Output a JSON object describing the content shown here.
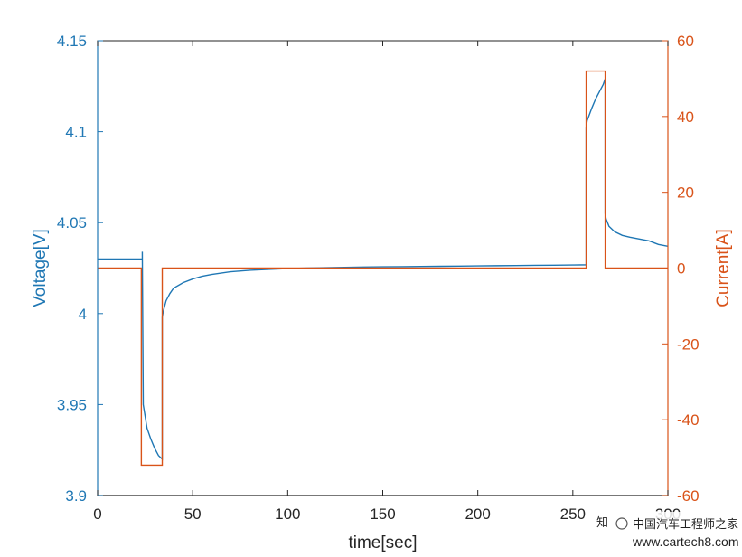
{
  "chart_data": {
    "type": "line",
    "xlabel": "time[sec]",
    "ylabel_left": "Voltage[V]",
    "ylabel_right": "Current[A]",
    "xlim": [
      0,
      300
    ],
    "ylim_left": [
      3.9,
      4.15
    ],
    "ylim_right": [
      -60,
      60
    ],
    "x_ticks": [
      0,
      50,
      100,
      150,
      200,
      250,
      300
    ],
    "y_left_ticks": [
      3.9,
      3.95,
      4,
      4.05,
      4.1,
      4.15
    ],
    "y_left_tick_labels": [
      "3.9",
      "3.95",
      "4",
      "4.05",
      "4.1",
      "4.15"
    ],
    "y_right_ticks": [
      -60,
      -40,
      -20,
      0,
      20,
      40,
      60
    ],
    "grid": false,
    "colors": {
      "voltage": "#1f77b4",
      "current": "#d95319",
      "axis": "#262626"
    },
    "series": [
      {
        "axis": "left",
        "x": [
          0,
          23.5,
          23.5,
          24,
          26,
          28,
          30,
          32,
          34,
          34,
          34.5,
          36,
          38,
          40,
          45,
          50,
          55,
          60,
          70,
          80,
          90,
          100,
          110,
          120,
          130,
          140,
          150,
          160,
          170,
          180,
          190,
          200,
          210,
          220,
          230,
          240,
          250,
          257,
          257,
          257.5,
          260,
          262,
          264,
          266,
          267,
          267,
          267.5,
          269,
          272,
          276,
          280,
          285,
          290,
          295,
          300
        ],
        "values": [
          4.03,
          4.03,
          4.034,
          3.95,
          3.937,
          3.931,
          3.926,
          3.922,
          3.92,
          3.998,
          4.001,
          4.007,
          4.011,
          4.014,
          4.017,
          4.019,
          4.0205,
          4.0215,
          4.023,
          4.0238,
          4.0243,
          4.0247,
          4.025,
          4.0252,
          4.0254,
          4.0256,
          4.0257,
          4.0258,
          4.0259,
          4.026,
          4.0261,
          4.0262,
          4.0263,
          4.0264,
          4.0265,
          4.0266,
          4.0267,
          4.0268,
          4.102,
          4.106,
          4.113,
          4.118,
          4.122,
          4.126,
          4.129,
          4.055,
          4.052,
          4.048,
          4.045,
          4.043,
          4.042,
          4.041,
          4.04,
          4.038,
          4.037
        ]
      },
      {
        "axis": "right",
        "x": [
          0,
          23,
          23,
          34,
          34,
          257,
          257,
          267,
          267,
          300
        ],
        "values": [
          0,
          0,
          -52,
          -52,
          0,
          0,
          52,
          52,
          0,
          0
        ]
      }
    ]
  }
}
